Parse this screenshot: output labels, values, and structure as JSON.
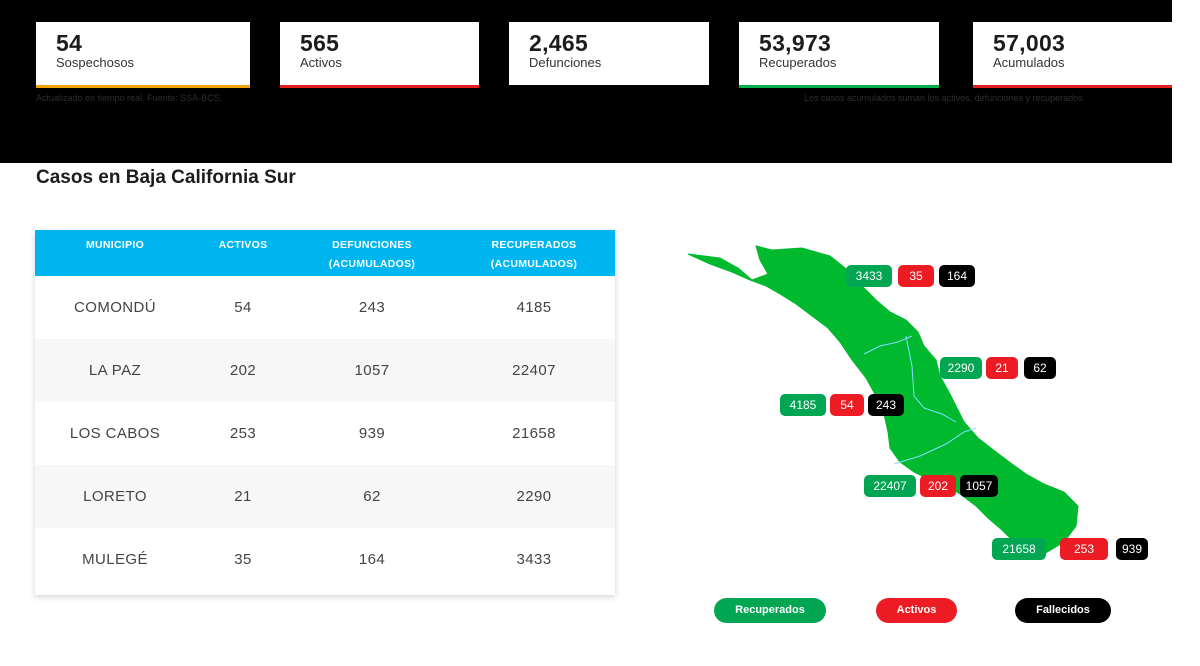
{
  "stats": [
    {
      "value": "54",
      "label": "Sospechosos",
      "color": "#f2a400"
    },
    {
      "value": "565",
      "label": "Activos",
      "color": "#e62020"
    },
    {
      "value": "2,465",
      "label": "Defunciones",
      "color": "#000000"
    },
    {
      "value": "53,973",
      "label": "Recuperados",
      "color": "#00b050"
    },
    {
      "value": "57,003",
      "label": "Acumulados",
      "color": "#e62020"
    }
  ],
  "notes": {
    "source": "Actualizado en tiempo real. Fuente: SSA-BCS.",
    "accumulated": "Los casos acumulados suman los activos, defunciones y recuperados"
  },
  "section_title": "Casos en Baja California Sur",
  "table": {
    "headers": [
      {
        "line1": "MUNICIPIO",
        "line2": ""
      },
      {
        "line1": "ACTIVOS",
        "line2": ""
      },
      {
        "line1": "DEFUNCIONES",
        "line2": "(ACUMULADOS)"
      },
      {
        "line1": "RECUPERADOS",
        "line2": "(ACUMULADOS)"
      }
    ],
    "rows": [
      {
        "municipio": "COMONDÚ",
        "activos": "54",
        "defunciones": "243",
        "recuperados": "4185"
      },
      {
        "municipio": "LA PAZ",
        "activos": "202",
        "defunciones": "1057",
        "recuperados": "22407"
      },
      {
        "municipio": "LOS CABOS",
        "activos": "253",
        "defunciones": "939",
        "recuperados": "21658"
      },
      {
        "municipio": "LORETO",
        "activos": "21",
        "defunciones": "62",
        "recuperados": "2290"
      },
      {
        "municipio": "MULEGÉ",
        "activos": "35",
        "defunciones": "164",
        "recuperados": "3433"
      }
    ]
  },
  "map": {
    "land_color": "#00b92f",
    "labels": [
      {
        "municipio": "MULEGÉ",
        "recuperados": "3433",
        "activos": "35",
        "fallecidos": "164"
      },
      {
        "municipio": "LORETO",
        "recuperados": "2290",
        "activos": "21",
        "fallecidos": "62"
      },
      {
        "municipio": "COMONDÚ",
        "recuperados": "4185",
        "activos": "54",
        "fallecidos": "243"
      },
      {
        "municipio": "LA PAZ",
        "recuperados": "22407",
        "activos": "202",
        "fallecidos": "1057"
      },
      {
        "municipio": "LOS CABOS",
        "recuperados": "21658",
        "activos": "253",
        "fallecidos": "939"
      }
    ]
  },
  "legend": [
    {
      "label": "Recuperados",
      "color": "#00a651"
    },
    {
      "label": "Activos",
      "color": "#ed1c24"
    },
    {
      "label": "Fallecidos",
      "color": "#000000"
    }
  ],
  "colors": {
    "header_blue": "#00b6f0",
    "recuperados": "#00a651",
    "activos": "#ed1c24",
    "fallecidos": "#000000"
  }
}
